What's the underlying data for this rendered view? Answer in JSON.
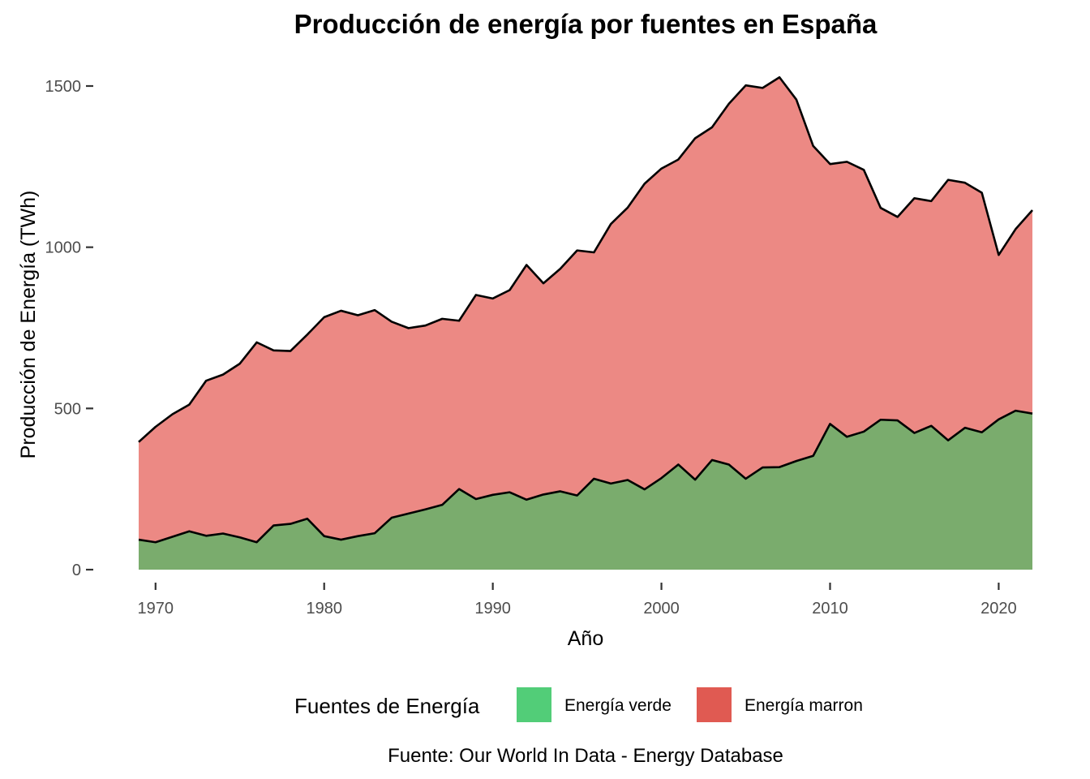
{
  "chart_data": {
    "type": "area",
    "stacked": true,
    "title": "Producción de energía por fuentes en España",
    "xlabel": "Año",
    "ylabel": "Producción de Energía (TWh)",
    "caption": "Fuente: Our World In Data - Energy Database",
    "xlim": [
      1969,
      2022
    ],
    "ylim": [
      0,
      1530
    ],
    "xticks": [
      1970,
      1980,
      1990,
      2000,
      2010,
      2020
    ],
    "yticks": [
      0,
      500,
      1000,
      1500
    ],
    "grid": false,
    "legend": {
      "title": "Fuentes de Energía",
      "position": "bottom",
      "items": [
        {
          "label": "Energía verde",
          "color": "#52cd78"
        },
        {
          "label": "Energía marron",
          "color": "#e05a52"
        }
      ]
    },
    "x": [
      1969,
      1970,
      1971,
      1972,
      1973,
      1974,
      1975,
      1976,
      1977,
      1978,
      1979,
      1980,
      1981,
      1982,
      1983,
      1984,
      1985,
      1986,
      1987,
      1988,
      1989,
      1990,
      1991,
      1992,
      1993,
      1994,
      1995,
      1996,
      1997,
      1998,
      1999,
      2000,
      2001,
      2002,
      2003,
      2004,
      2005,
      2006,
      2007,
      2008,
      2009,
      2010,
      2011,
      2012,
      2013,
      2014,
      2015,
      2016,
      2017,
      2018,
      2019,
      2020,
      2021,
      2022
    ],
    "series": [
      {
        "name": "Energía verde",
        "color": "#7aac6d",
        "values": [
          93,
          85,
          102,
          119,
          105,
          112,
          100,
          85,
          137,
          142,
          158,
          104,
          93,
          104,
          113,
          161,
          174,
          187,
          201,
          250,
          219,
          232,
          240,
          217,
          233,
          243,
          230,
          282,
          267,
          278,
          249,
          284,
          326,
          279,
          340,
          326,
          282,
          317,
          318,
          337,
          353,
          452,
          412,
          428,
          465,
          463,
          424,
          446,
          401,
          440,
          426,
          466,
          493,
          484
        ]
      },
      {
        "name": "Energía marron",
        "color": "#ec8984",
        "values": [
          303,
          358,
          380,
          393,
          481,
          493,
          539,
          620,
          543,
          536,
          571,
          679,
          710,
          685,
          692,
          608,
          575,
          570,
          577,
          522,
          633,
          609,
          627,
          728,
          655,
          690,
          760,
          702,
          805,
          845,
          948,
          960,
          946,
          1059,
          1032,
          1119,
          1220,
          1177,
          1209,
          1121,
          961,
          806,
          853,
          812,
          657,
          631,
          728,
          697,
          808,
          760,
          743,
          510,
          563,
          631
        ]
      }
    ]
  }
}
